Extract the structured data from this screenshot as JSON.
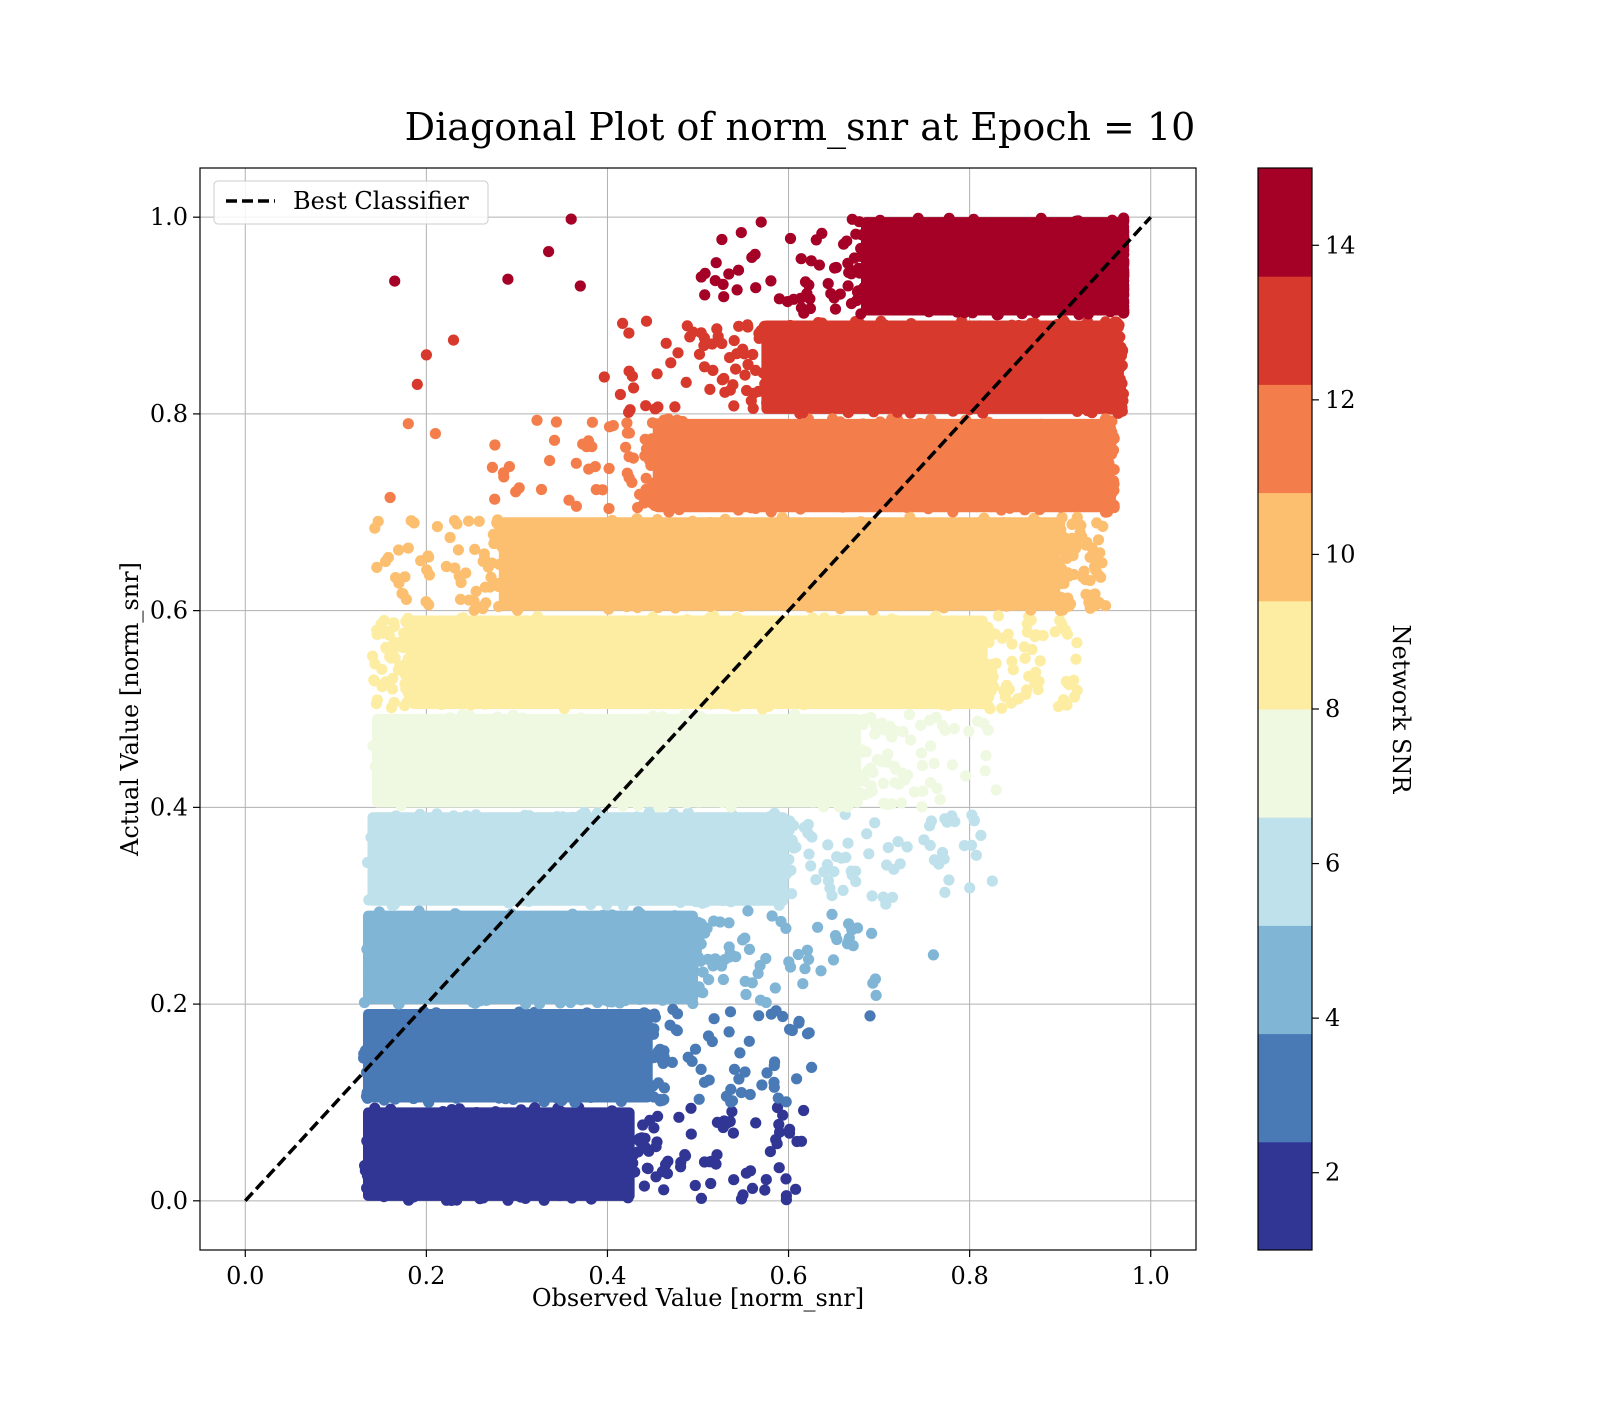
{
  "chart_data": {
    "type": "scatter",
    "title": "Diagonal Plot of norm_snr at Epoch = 10",
    "xlabel": "Observed Value [norm_snr]",
    "ylabel": "Actual Value [norm_snr]",
    "xlim": [
      -0.05,
      1.05
    ],
    "ylim": [
      -0.05,
      1.05
    ],
    "x_ticks": [
      "0.0",
      "0.2",
      "0.4",
      "0.6",
      "0.8",
      "1.0"
    ],
    "y_ticks": [
      "0.0",
      "0.2",
      "0.4",
      "0.6",
      "0.8",
      "1.0"
    ],
    "grid": true,
    "legend": {
      "placement": "top-left",
      "entries": [
        {
          "label": "Best Classifier",
          "style": "dashed",
          "color": "#000000"
        }
      ]
    },
    "reference_line": {
      "label": "Best Classifier",
      "x": [
        0.0,
        1.0
      ],
      "y": [
        0.0,
        1.0
      ],
      "color": "#000000",
      "dashed": true
    },
    "colorbar": {
      "label": "Network SNR",
      "range": [
        1,
        15
      ],
      "tick_labels": [
        "2",
        "4",
        "6",
        "8",
        "10",
        "12",
        "14"
      ],
      "tick_values": [
        2,
        4,
        6,
        8,
        10,
        12,
        14
      ],
      "colors": [
        "#313695",
        "#4a7ab6",
        "#80b5d6",
        "#bfe1ec",
        "#eff8e0",
        "#fdeda3",
        "#fcbf70",
        "#f47e4b",
        "#d73a2c",
        "#a50026"
      ]
    },
    "bands": [
      {
        "color": "#313695",
        "y_range": [
          0.0,
          0.095
        ],
        "dense_x": [
          0.13,
          0.43
        ],
        "scatter_x_max": 0.62
      },
      {
        "color": "#4a7ab6",
        "y_range": [
          0.1,
          0.195
        ],
        "dense_x": [
          0.13,
          0.45
        ],
        "scatter_x_max": 0.63
      },
      {
        "color": "#80b5d6",
        "y_range": [
          0.2,
          0.295
        ],
        "dense_x": [
          0.13,
          0.5
        ],
        "scatter_x_max": 0.7
      },
      {
        "color": "#bfe1ec",
        "y_range": [
          0.3,
          0.395
        ],
        "dense_x": [
          0.135,
          0.6
        ],
        "scatter_x_max": 0.82
      },
      {
        "color": "#eff8e0",
        "y_range": [
          0.4,
          0.495
        ],
        "dense_x": [
          0.14,
          0.68
        ],
        "scatter_x_max": 0.83
      },
      {
        "color": "#fdeda3",
        "y_range": [
          0.5,
          0.595
        ],
        "dense_x": [
          0.18,
          0.82
        ],
        "scatter_x_max": 0.92
      },
      {
        "color": "#fcbf70",
        "y_range": [
          0.6,
          0.695
        ],
        "dense_x": [
          0.28,
          0.9
        ],
        "scatter_x_max": 0.95
      },
      {
        "color": "#f47e4b",
        "y_range": [
          0.7,
          0.795
        ],
        "dense_x": [
          0.45,
          0.95
        ],
        "scatter_x_max": 0.96
      },
      {
        "color": "#d73a2c",
        "y_range": [
          0.8,
          0.895
        ],
        "dense_x": [
          0.57,
          0.96
        ],
        "scatter_x_max": 0.97
      },
      {
        "color": "#a50026",
        "y_range": [
          0.9,
          1.0
        ],
        "dense_x": [
          0.68,
          0.97
        ],
        "scatter_x_max": 0.97
      }
    ],
    "outliers": [
      {
        "x": 0.165,
        "y": 0.935,
        "color": "#a50026"
      },
      {
        "x": 0.29,
        "y": 0.937,
        "color": "#a50026"
      },
      {
        "x": 0.36,
        "y": 0.998,
        "color": "#a50026"
      },
      {
        "x": 0.335,
        "y": 0.965,
        "color": "#a50026"
      },
      {
        "x": 0.37,
        "y": 0.93,
        "color": "#a50026"
      },
      {
        "x": 0.2,
        "y": 0.86,
        "color": "#d73a2c"
      },
      {
        "x": 0.23,
        "y": 0.875,
        "color": "#d73a2c"
      },
      {
        "x": 0.19,
        "y": 0.83,
        "color": "#d73a2c"
      },
      {
        "x": 0.18,
        "y": 0.79,
        "color": "#f47e4b"
      },
      {
        "x": 0.16,
        "y": 0.715,
        "color": "#f47e4b"
      },
      {
        "x": 0.21,
        "y": 0.78,
        "color": "#f47e4b"
      },
      {
        "x": 0.145,
        "y": 0.58,
        "color": "#fdeda3"
      },
      {
        "x": 0.155,
        "y": 0.65,
        "color": "#fcbf70"
      },
      {
        "x": 0.95,
        "y": 0.605,
        "color": "#fcbf70"
      },
      {
        "x": 0.825,
        "y": 0.325,
        "color": "#bfe1ec"
      },
      {
        "x": 0.76,
        "y": 0.25,
        "color": "#80b5d6"
      },
      {
        "x": 0.69,
        "y": 0.188,
        "color": "#4a7ab6"
      },
      {
        "x": 0.58,
        "y": 0.05,
        "color": "#313695"
      }
    ]
  }
}
